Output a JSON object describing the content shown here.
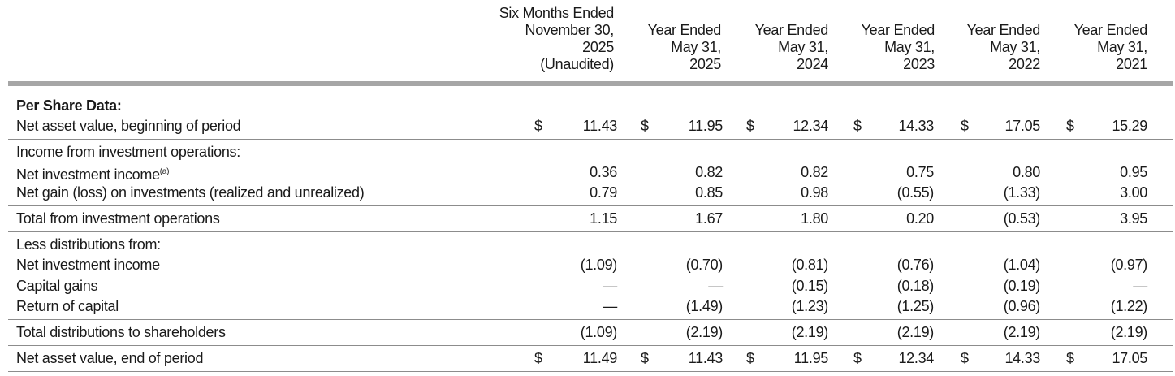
{
  "columns": [
    {
      "lines": [
        "Six Months Ended",
        "November 30,",
        "2025",
        "(Unaudited)"
      ]
    },
    {
      "lines": [
        "Year Ended",
        "May 31,",
        "2025"
      ]
    },
    {
      "lines": [
        "Year Ended",
        "May 31,",
        "2024"
      ]
    },
    {
      "lines": [
        "Year Ended",
        "May 31,",
        "2023"
      ]
    },
    {
      "lines": [
        "Year Ended",
        "May 31,",
        "2022"
      ]
    },
    {
      "lines": [
        "Year Ended",
        "May 31,",
        "2021"
      ]
    }
  ],
  "section_title": "Per Share Data:",
  "currency_symbol": "$",
  "rows": {
    "nav_begin": {
      "label": "Net asset value, beginning of period",
      "values": [
        "11.43",
        "11.95",
        "12.34",
        "14.33",
        "17.05",
        "15.29"
      ]
    },
    "income_header": {
      "label": "Income from investment operations:"
    },
    "net_inv_income": {
      "label": "Net investment income",
      "footnote": "(a)",
      "values": [
        "0.36",
        "0.82",
        "0.82",
        "0.75",
        "0.80",
        "0.95"
      ]
    },
    "net_gain": {
      "label": "Net gain (loss) on investments (realized and unrealized)",
      "values": [
        "0.79",
        "0.85",
        "0.98",
        "(0.55)",
        "(1.33)",
        "3.00"
      ]
    },
    "total_inv_ops": {
      "label": "Total from investment operations",
      "values": [
        "1.15",
        "1.67",
        "1.80",
        "0.20",
        "(0.53)",
        "3.95"
      ]
    },
    "less_dist_header": {
      "label": "Less distributions from:"
    },
    "dist_net_inv_income": {
      "label": "Net investment income",
      "values": [
        "(1.09)",
        "(0.70)",
        "(0.81)",
        "(0.76)",
        "(1.04)",
        "(0.97)"
      ]
    },
    "capital_gains": {
      "label": "Capital gains",
      "values": [
        "—",
        "—",
        "(0.15)",
        "(0.18)",
        "(0.19)",
        "—"
      ]
    },
    "return_of_capital": {
      "label": "Return of capital",
      "values": [
        "—",
        "(1.49)",
        "(1.23)",
        "(1.25)",
        "(0.96)",
        "(1.22)"
      ]
    },
    "total_distributions": {
      "label": "Total distributions to shareholders",
      "values": [
        "(1.09)",
        "(2.19)",
        "(2.19)",
        "(2.19)",
        "(2.19)",
        "(2.19)"
      ]
    },
    "nav_end": {
      "label": "Net asset value, end of period",
      "values": [
        "11.49",
        "11.43",
        "11.95",
        "12.34",
        "14.33",
        "17.05"
      ]
    }
  }
}
